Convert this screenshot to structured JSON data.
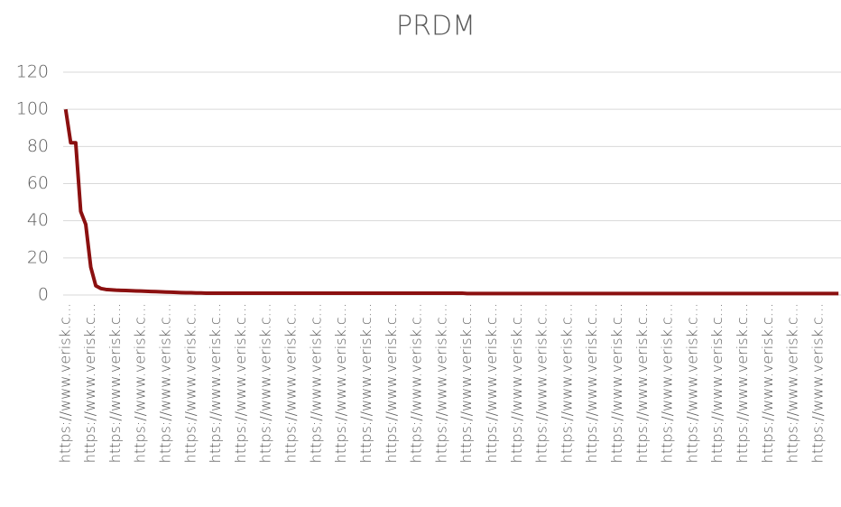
{
  "chart_data": {
    "type": "line",
    "title": "PRDM",
    "categories": [
      "https://www.verisk.c...",
      null,
      null,
      null,
      null,
      "https://www.verisk.c...",
      null,
      null,
      null,
      null,
      "https://www.verisk.c...",
      null,
      null,
      null,
      null,
      "https://www.verisk.c...",
      null,
      null,
      null,
      null,
      "https://www.verisk.c...",
      null,
      null,
      null,
      null,
      "https://www.verisk.c...",
      null,
      null,
      null,
      null,
      "https://www.verisk.c...",
      null,
      null,
      null,
      null,
      "https://www.verisk.c...",
      null,
      null,
      null,
      null,
      "https://www.verisk.c...",
      null,
      null,
      null,
      null,
      "https://www.verisk.c...",
      null,
      null,
      null,
      null,
      "https://www.verisk.c...",
      null,
      null,
      null,
      null,
      "https://www.verisk.c...",
      null,
      null,
      null,
      null,
      "https://www.verisk.c...",
      null,
      null,
      null,
      null,
      "https://www.verisk.c...",
      null,
      null,
      null,
      null,
      "https://www.verisk.c...",
      null,
      null,
      null,
      null,
      "https://www.verisk.c...",
      null,
      null,
      null,
      null,
      "https://www.verisk.c...",
      null,
      null,
      null,
      null,
      "https://www.verisk.c...",
      null,
      null,
      null,
      null,
      "https://www.verisk.c...",
      null,
      null,
      null,
      null,
      "https://www.verisk.c...",
      null,
      null,
      null,
      null,
      "https://www.verisk.c...",
      null,
      null,
      null,
      null,
      "https://www.verisk.c...",
      null,
      null,
      null,
      null,
      "https://www.verisk.c...",
      null,
      null,
      null,
      null,
      "https://www.verisk.c...",
      null,
      null,
      null,
      null,
      "https://www.verisk.c...",
      null,
      null,
      null,
      null,
      "https://www.verisk.c...",
      null,
      null,
      null,
      null,
      "https://www.verisk.c...",
      null,
      null,
      null,
      null,
      "https://www.verisk.c...",
      null,
      null,
      null,
      null,
      "https://www.verisk.c...",
      null,
      null,
      null,
      null,
      "https://www.verisk.c...",
      null,
      null,
      null,
      null,
      "https://www.verisk.c...",
      null,
      null,
      null,
      null
    ],
    "values": [
      100,
      82,
      82,
      45,
      38,
      15,
      5,
      3.5,
      3,
      2.8,
      2.6,
      2.5,
      2.4,
      2.3,
      2.2,
      2.1,
      2,
      1.9,
      1.8,
      1.7,
      1.6,
      1.5,
      1.4,
      1.3,
      1.2,
      1.2,
      1.1,
      1.1,
      1,
      1,
      1,
      1,
      1,
      1,
      1,
      1,
      1,
      1,
      1,
      1,
      1,
      1,
      1,
      1,
      1,
      1,
      1,
      1,
      1,
      1,
      1,
      1,
      1,
      1,
      1,
      1,
      1,
      1,
      1,
      1,
      1,
      1,
      1,
      1,
      1,
      1,
      1,
      1,
      1,
      1,
      1,
      1,
      1,
      1,
      1,
      1,
      1,
      1,
      1,
      1,
      0.8,
      0.8,
      0.8,
      0.8,
      0.8,
      0.8,
      0.8,
      0.8,
      0.8,
      0.8,
      0.8,
      0.8,
      0.8,
      0.8,
      0.8,
      0.8,
      0.8,
      0.8,
      0.8,
      0.8,
      0.8,
      0.8,
      0.8,
      0.8,
      0.8,
      0.8,
      0.8,
      0.8,
      0.8,
      0.8,
      0.8,
      0.8,
      0.8,
      0.8,
      0.8,
      0.8,
      0.8,
      0.8,
      0.8,
      0.8,
      0.8,
      0.8,
      0.8,
      0.8,
      0.8,
      0.8,
      0.8,
      0.8,
      0.8,
      0.8,
      0.8,
      0.8,
      0.8,
      0.8,
      0.8,
      0.8,
      0.8,
      0.8,
      0.8,
      0.8,
      0.8,
      0.8,
      0.8,
      0.8,
      0.8,
      0.8,
      0.8,
      0.8,
      0.8,
      0.8,
      0.8,
      0.8,
      0.8,
      0.8,
      0.8
    ],
    "color": "#8b1010",
    "ylim": [
      0,
      120
    ],
    "yticks": [
      0,
      20,
      40,
      60,
      80,
      100,
      120
    ],
    "grid": true
  }
}
